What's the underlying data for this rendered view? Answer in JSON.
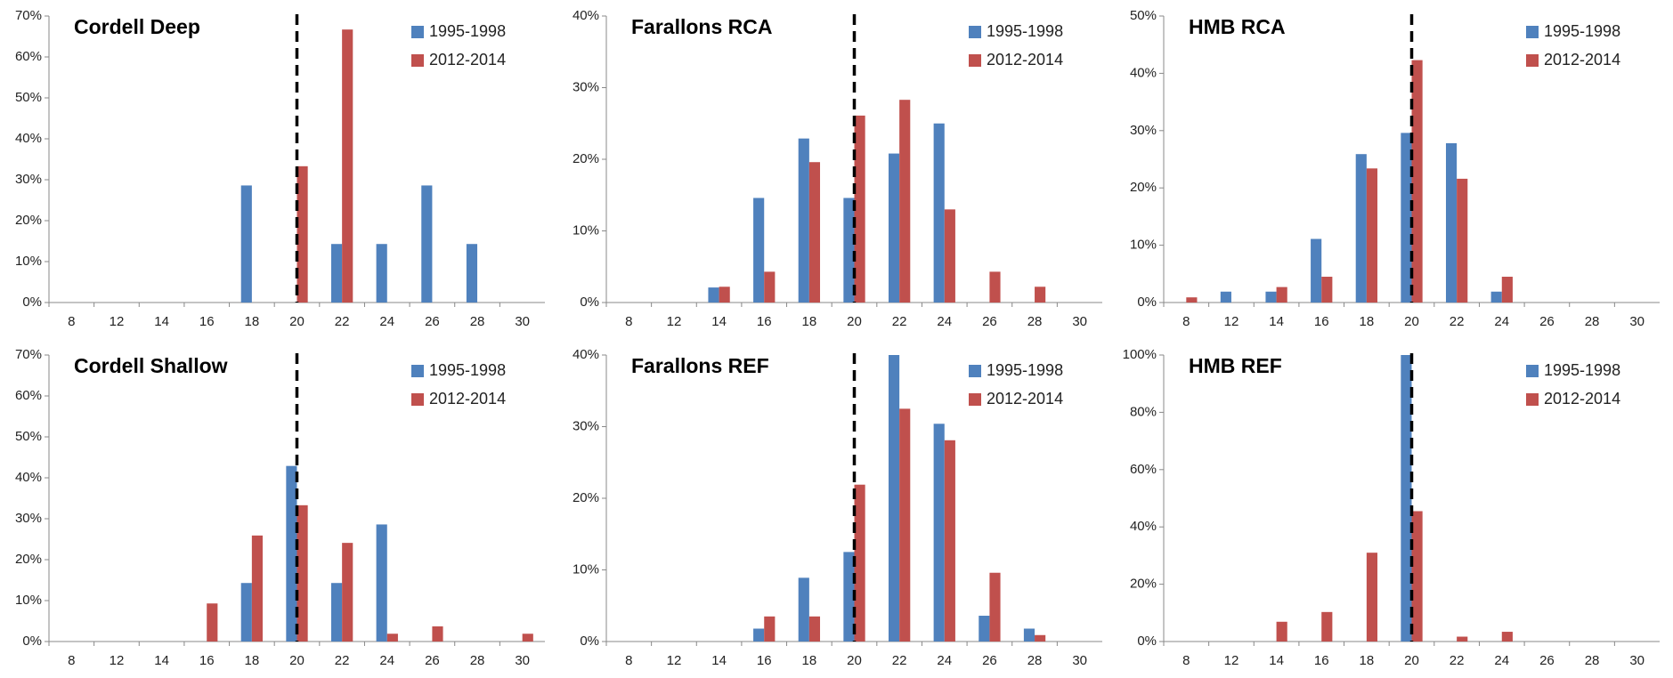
{
  "chart_data": [
    {
      "type": "bar",
      "title": "Cordell Deep",
      "legend": "upper right",
      "vline": "20",
      "categories": [
        "8",
        "12",
        "14",
        "16",
        "18",
        "20",
        "22",
        "24",
        "26",
        "28",
        "30"
      ],
      "ylim": [
        0,
        70
      ],
      "yticks": [
        {
          "value": 0,
          "label": "0%"
        },
        {
          "value": 10,
          "label": "10%"
        },
        {
          "value": 20,
          "label": "20%"
        },
        {
          "value": 30,
          "label": "30%"
        },
        {
          "value": 40,
          "label": "40%"
        },
        {
          "value": 50,
          "label": "50%"
        },
        {
          "value": 60,
          "label": "60%"
        },
        {
          "value": 70,
          "label": "70%"
        }
      ],
      "series": [
        {
          "name": "1995-1998",
          "color": "#4f81bd",
          "values": [
            0,
            0,
            0,
            0,
            28.6,
            0,
            14.3,
            14.3,
            28.6,
            14.3,
            0
          ]
        },
        {
          "name": "2012-2014",
          "color": "#c0504d",
          "values": [
            0,
            0,
            0,
            0,
            0,
            33.3,
            66.7,
            0,
            0,
            0,
            0
          ]
        }
      ]
    },
    {
      "type": "bar",
      "title": "Farallons RCA",
      "legend": "upper right",
      "vline": "20",
      "categories": [
        "8",
        "12",
        "14",
        "16",
        "18",
        "20",
        "22",
        "24",
        "26",
        "28",
        "30"
      ],
      "ylim": [
        0,
        40
      ],
      "yticks": [
        {
          "value": 0,
          "label": "0%"
        },
        {
          "value": 10,
          "label": "10%"
        },
        {
          "value": 20,
          "label": "20%"
        },
        {
          "value": 30,
          "label": "30%"
        },
        {
          "value": 40,
          "label": "40%"
        }
      ],
      "series": [
        {
          "name": "1995-1998",
          "color": "#4f81bd",
          "values": [
            0,
            0,
            2.1,
            14.6,
            22.9,
            14.6,
            20.8,
            25.0,
            0,
            0,
            0
          ]
        },
        {
          "name": "2012-2014",
          "color": "#c0504d",
          "values": [
            0,
            0,
            2.2,
            4.3,
            19.6,
            26.1,
            28.3,
            13.0,
            4.3,
            2.2,
            0
          ]
        }
      ]
    },
    {
      "type": "bar",
      "title": "HMB RCA",
      "legend": "upper right",
      "vline": "20",
      "categories": [
        "8",
        "12",
        "14",
        "16",
        "18",
        "20",
        "22",
        "24",
        "26",
        "28",
        "30"
      ],
      "ylim": [
        0,
        50
      ],
      "yticks": [
        {
          "value": 0,
          "label": "0%"
        },
        {
          "value": 10,
          "label": "10%"
        },
        {
          "value": 20,
          "label": "20%"
        },
        {
          "value": 30,
          "label": "30%"
        },
        {
          "value": 40,
          "label": "40%"
        },
        {
          "value": 50,
          "label": "50%"
        }
      ],
      "series": [
        {
          "name": "1995-1998",
          "color": "#4f81bd",
          "values": [
            0,
            1.9,
            1.9,
            11.1,
            25.9,
            29.6,
            27.8,
            1.9,
            0,
            0,
            0
          ]
        },
        {
          "name": "2012-2014",
          "color": "#c0504d",
          "values": [
            0.9,
            0,
            2.7,
            4.5,
            23.4,
            42.3,
            21.6,
            4.5,
            0,
            0,
            0
          ]
        }
      ]
    },
    {
      "type": "bar",
      "title": "Cordell Shallow",
      "legend": "upper right",
      "vline": "20",
      "categories": [
        "8",
        "12",
        "14",
        "16",
        "18",
        "20",
        "22",
        "24",
        "26",
        "28",
        "30"
      ],
      "ylim": [
        0,
        70
      ],
      "yticks": [
        {
          "value": 0,
          "label": "0%"
        },
        {
          "value": 10,
          "label": "10%"
        },
        {
          "value": 20,
          "label": "20%"
        },
        {
          "value": 30,
          "label": "30%"
        },
        {
          "value": 40,
          "label": "40%"
        },
        {
          "value": 50,
          "label": "50%"
        },
        {
          "value": 60,
          "label": "60%"
        },
        {
          "value": 70,
          "label": "70%"
        }
      ],
      "series": [
        {
          "name": "1995-1998",
          "color": "#4f81bd",
          "values": [
            0,
            0,
            0,
            0,
            14.3,
            42.9,
            14.3,
            28.6,
            0,
            0,
            0
          ]
        },
        {
          "name": "2012-2014",
          "color": "#c0504d",
          "values": [
            0,
            0,
            0,
            9.3,
            25.9,
            33.3,
            24.1,
            1.9,
            3.7,
            0,
            1.9
          ]
        }
      ]
    },
    {
      "type": "bar",
      "title": "Farallons REF",
      "legend": "upper right",
      "vline": "20",
      "categories": [
        "8",
        "12",
        "14",
        "16",
        "18",
        "20",
        "22",
        "24",
        "26",
        "28",
        "30"
      ],
      "ylim": [
        0,
        40
      ],
      "yticks": [
        {
          "value": 0,
          "label": "0%"
        },
        {
          "value": 10,
          "label": "10%"
        },
        {
          "value": 20,
          "label": "20%"
        },
        {
          "value": 30,
          "label": "30%"
        },
        {
          "value": 40,
          "label": "40%"
        }
      ],
      "series": [
        {
          "name": "1995-1998",
          "color": "#4f81bd",
          "values": [
            0,
            0,
            0,
            1.8,
            8.9,
            12.5,
            40.0,
            30.4,
            3.6,
            1.8,
            0
          ]
        },
        {
          "name": "2012-2014",
          "color": "#c0504d",
          "values": [
            0,
            0,
            0,
            3.5,
            3.5,
            21.9,
            32.5,
            28.1,
            9.6,
            0.9,
            0
          ]
        }
      ]
    },
    {
      "type": "bar",
      "title": "HMB REF",
      "legend": "upper right",
      "vline": "20",
      "categories": [
        "8",
        "12",
        "14",
        "16",
        "18",
        "20",
        "22",
        "24",
        "26",
        "28",
        "30"
      ],
      "ylim": [
        0,
        100
      ],
      "yticks": [
        {
          "value": 0,
          "label": "0%"
        },
        {
          "value": 20,
          "label": "20%"
        },
        {
          "value": 40,
          "label": "40%"
        },
        {
          "value": 60,
          "label": "60%"
        },
        {
          "value": 80,
          "label": "80%"
        },
        {
          "value": 100,
          "label": "100%"
        }
      ],
      "series": [
        {
          "name": "1995-1998",
          "color": "#4f81bd",
          "values": [
            0,
            0,
            0,
            0,
            0,
            100,
            0,
            0,
            0,
            0,
            0
          ]
        },
        {
          "name": "2012-2014",
          "color": "#c0504d",
          "values": [
            0,
            0,
            6.9,
            10.3,
            31.0,
            45.5,
            1.7,
            3.4,
            0,
            0,
            0
          ]
        }
      ]
    }
  ]
}
